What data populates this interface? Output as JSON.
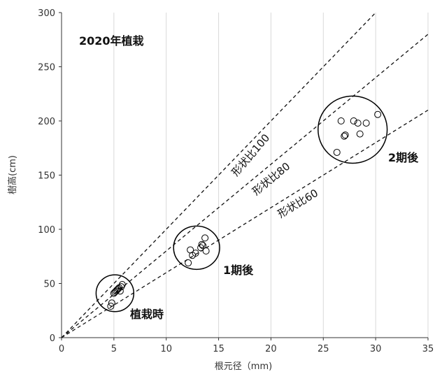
{
  "chart_data": {
    "type": "scatter",
    "xlabel": "根元径（mm)",
    "ylabel": "樹高(cm)",
    "xlim": [
      0,
      35
    ],
    "ylim": [
      0,
      300
    ],
    "x_ticks": [
      0,
      5,
      10,
      15,
      20,
      25,
      30,
      35
    ],
    "y_ticks": [
      0,
      50,
      100,
      150,
      200,
      250,
      300
    ],
    "x_tick_labels": [
      "0",
      "5",
      "10",
      "15",
      "20",
      "25",
      "30",
      "35"
    ],
    "y_tick_labels": [
      "0",
      "50",
      "100",
      "150",
      "200",
      "250",
      "300"
    ],
    "grid": "vertical",
    "point_color": "#000000",
    "annotations": {
      "title": "2020年植栽",
      "group_planting": "植栽時",
      "group_period1": "1期後",
      "group_period2": "2期後",
      "line_100": "形状比100",
      "line_80": "形状比80",
      "line_60": "形状比60"
    },
    "ratio_lines": [
      {
        "ratio": 100,
        "label_key": "line_100"
      },
      {
        "ratio": 80,
        "label_key": "line_80"
      },
      {
        "ratio": 60,
        "label_key": "line_60"
      }
    ],
    "groups": [
      {
        "label_key": "group_planting",
        "ellipse": {
          "cx": 5.1,
          "cy": 41,
          "rx": 1.8,
          "ry": 17
        },
        "points": [
          {
            "x": 4.7,
            "y": 29
          },
          {
            "x": 4.8,
            "y": 32
          },
          {
            "x": 5.0,
            "y": 41
          },
          {
            "x": 5.1,
            "y": 42
          },
          {
            "x": 5.2,
            "y": 43
          },
          {
            "x": 5.3,
            "y": 44
          },
          {
            "x": 5.5,
            "y": 46
          },
          {
            "x": 5.6,
            "y": 43
          },
          {
            "x": 5.7,
            "y": 47
          },
          {
            "x": 5.8,
            "y": 49
          },
          {
            "x": 5.4,
            "y": 45
          }
        ]
      },
      {
        "label_key": "group_period1",
        "ellipse": {
          "cx": 12.9,
          "cy": 83,
          "rx": 2.2,
          "ry": 20
        },
        "points": [
          {
            "x": 12.1,
            "y": 69
          },
          {
            "x": 12.3,
            "y": 81
          },
          {
            "x": 12.5,
            "y": 76
          },
          {
            "x": 12.8,
            "y": 78
          },
          {
            "x": 13.3,
            "y": 83
          },
          {
            "x": 13.4,
            "y": 86
          },
          {
            "x": 13.5,
            "y": 85
          },
          {
            "x": 13.8,
            "y": 80
          },
          {
            "x": 13.7,
            "y": 92
          }
        ]
      },
      {
        "label_key": "group_period2",
        "ellipse": {
          "cx": 27.8,
          "cy": 192,
          "rx": 3.3,
          "ry": 31
        },
        "points": [
          {
            "x": 26.3,
            "y": 171
          },
          {
            "x": 26.7,
            "y": 200
          },
          {
            "x": 27.0,
            "y": 186
          },
          {
            "x": 27.1,
            "y": 187
          },
          {
            "x": 27.9,
            "y": 200
          },
          {
            "x": 28.3,
            "y": 198
          },
          {
            "x": 28.5,
            "y": 188
          },
          {
            "x": 29.1,
            "y": 198
          },
          {
            "x": 30.2,
            "y": 206
          }
        ]
      }
    ]
  }
}
